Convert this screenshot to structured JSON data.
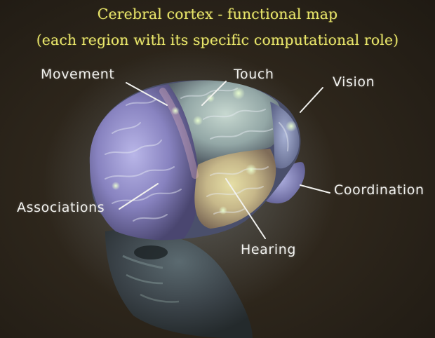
{
  "slide": {
    "title_line1": "Cerebral cortex - functional map",
    "title_line2": "(each region with its specific computational role)"
  },
  "labels": {
    "movement": "Movement",
    "touch": "Touch",
    "vision": "Vision",
    "associations": "Associations",
    "coordination": "Coordination",
    "hearing": "Hearing"
  },
  "colors": {
    "background": "#2a231a",
    "title": "#e8e56a",
    "label": "#f1f1ee"
  }
}
